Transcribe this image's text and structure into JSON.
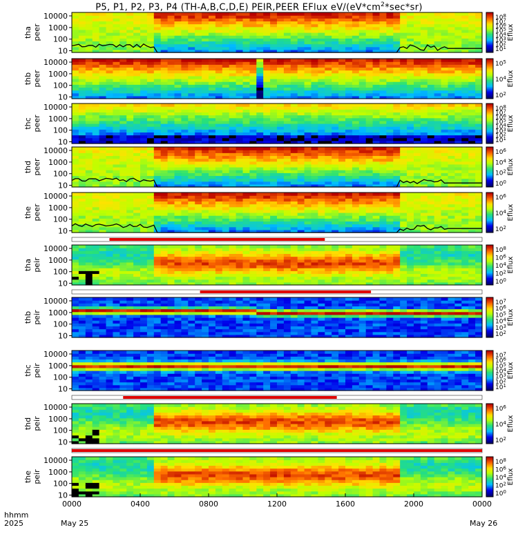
{
  "title": {
    "main": "P5, P1, P2, P3, P4 (TH-A,B,C,D,E) PEIR,PEER EFlux eV/(eV*cm",
    "sup": "2",
    "rest": "*sec*sr)"
  },
  "footer": {
    "row1_label": "hhmm",
    "row2_label": "2025",
    "ticks": [
      "0000",
      "0400",
      "0800",
      "1200",
      "1600",
      "2000",
      "0000"
    ],
    "start_date": "May 25",
    "end_date": "May 26"
  },
  "chart_data": {
    "type": "heatmap",
    "x_range_hours": [
      0,
      24
    ],
    "y_scale": "log",
    "y_ticks": [
      "10000",
      "1000",
      "100",
      "10"
    ],
    "cbar_label": "Eflux",
    "panels": [
      {
        "name": "tha peer",
        "label1": "tha",
        "label2": "peer",
        "pattern": "peer_sheath",
        "cbar": [
          "10^8",
          "10^7",
          "10^6",
          "10^5",
          "10^4",
          "10^3",
          "10^2",
          "10^1"
        ],
        "overlay": true,
        "bands": []
      },
      {
        "name": "thb peer",
        "label1": "thb",
        "label2": "peer",
        "pattern": "peer_steady",
        "cbar": [
          "10^5",
          "10^4",
          "10^2"
        ],
        "overlay": false,
        "bands": []
      },
      {
        "name": "thc peer",
        "label1": "thc",
        "label2": "peer",
        "pattern": "peer_low",
        "cbar": [
          "10^8",
          "10^7",
          "10^6",
          "10^5",
          "10^4",
          "10^3",
          "10^2",
          "10^1"
        ],
        "overlay": false,
        "bands": []
      },
      {
        "name": "thd peer",
        "label1": "thd",
        "label2": "peer",
        "pattern": "peer_sheath",
        "cbar": [
          "10^6",
          "10^4",
          "10^2",
          "10^0"
        ],
        "overlay": true,
        "bands": []
      },
      {
        "name": "the peer",
        "label1": "the",
        "label2": "peer",
        "pattern": "peer_sheath",
        "cbar": [
          "10^6",
          "10^4",
          "10^2"
        ],
        "overlay": true,
        "bands": [
          [
            2.2,
            14.8
          ]
        ]
      },
      {
        "name": "tha peir",
        "label1": "tha",
        "label2": "peir",
        "pattern": "peir_sheath",
        "cbar": [
          "10^8",
          "10^6",
          "10^4",
          "10^2",
          "10^0"
        ],
        "overlay": false,
        "bands": [
          [
            7.5,
            17.5
          ]
        ]
      },
      {
        "name": "thb peir",
        "label1": "thb",
        "label2": "peir",
        "pattern": "peir_band",
        "cbar": [
          "10^7",
          "10^6",
          "10^5",
          "10^4",
          "10^3",
          "10^2"
        ],
        "overlay": false,
        "bands": []
      },
      {
        "name": "thc peir",
        "label1": "thc",
        "label2": "peir",
        "pattern": "peir_band2",
        "cbar": [
          "10^7",
          "10^6",
          "10^5",
          "10^4",
          "10^3",
          "10^2",
          "10^1"
        ],
        "overlay": false,
        "bands": [
          [
            3.0,
            15.5
          ]
        ]
      },
      {
        "name": "thd peir",
        "label1": "thd",
        "label2": "peir",
        "pattern": "peir_sheath",
        "cbar": [
          "10^6",
          "10^4",
          "10^2"
        ],
        "overlay": false,
        "bands": [
          [
            0.0,
            24.0
          ]
        ]
      },
      {
        "name": "the peir",
        "label1": "the",
        "label2": "peir",
        "pattern": "peir_sheath",
        "cbar": [
          "10^8",
          "10^6",
          "10^4",
          "10^2",
          "10^0"
        ],
        "overlay": false,
        "bands": []
      }
    ]
  }
}
